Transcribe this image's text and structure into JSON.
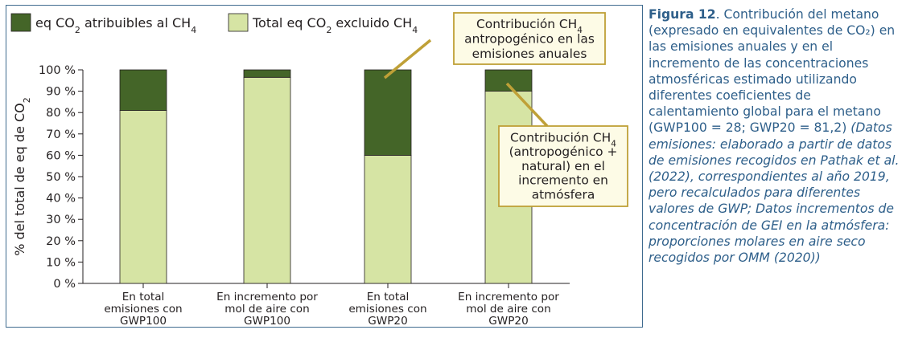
{
  "chart_data": {
    "type": "bar",
    "stacked": true,
    "categories": [
      [
        "En total",
        "emisiones con",
        "GWP100"
      ],
      [
        "En incremento por",
        "mol de aire con",
        "GWP100"
      ],
      [
        "En total",
        "emisiones con",
        "GWP20"
      ],
      [
        "En incremento por",
        "mol de aire con",
        "GWP20"
      ]
    ],
    "series": [
      {
        "name": "Total eq CO2 excluido CH4",
        "name_parts": [
          "Total eq CO",
          "2",
          " excluido CH",
          "4"
        ],
        "color": "#d6e4a4",
        "values": [
          81,
          96.5,
          60,
          90
        ]
      },
      {
        "name": "eq CO2 atribuibles al CH4",
        "name_parts": [
          "eq CO",
          "2",
          " atribuibles al CH",
          "4"
        ],
        "color": "#446528",
        "values": [
          19,
          3.5,
          40,
          10
        ]
      }
    ],
    "ylabel_parts": [
      "% del total de eq de CO",
      "2"
    ],
    "ylim": [
      0,
      100
    ],
    "yticks": [
      0,
      10,
      20,
      30,
      40,
      50,
      60,
      70,
      80,
      90,
      100
    ],
    "ytick_suffix": " %",
    "grid": false,
    "legend": "top-left",
    "annotations": [
      {
        "id": "anual",
        "lines": [
          [
            "Contribución CH",
            "4"
          ],
          [
            "antropogénico en las"
          ],
          [
            "emisiones anuales"
          ]
        ],
        "target_category": 2
      },
      {
        "id": "incremento",
        "lines": [
          [
            "Contribución CH",
            "4"
          ],
          [
            "(antropogénico +"
          ],
          [
            "natural) en el"
          ],
          [
            "incremento en"
          ],
          [
            "atmósfera"
          ]
        ],
        "target_category": 3
      }
    ]
  },
  "caption": {
    "label": "Figura 12",
    "text": ". Contribución del metano (expresado en equivalentes de CO₂) en las emisiones anuales y en el incremento de las concentraciones atmosféricas estimado utilizando diferentes coeficientes de calentamiento global para el metano (GWP100 = 28; GWP20 = 81,2) ",
    "italic": "(Datos emisiones: elaborado a partir de datos de emisiones recogidos en Pathak et al. (2022), correspondientes al año 2019, pero recalculados para diferentes valores de GWP; Datos incrementos de concentración de GEI en la atmósfera: proporciones molares en aire seco recogidos por OMM (2020))"
  }
}
